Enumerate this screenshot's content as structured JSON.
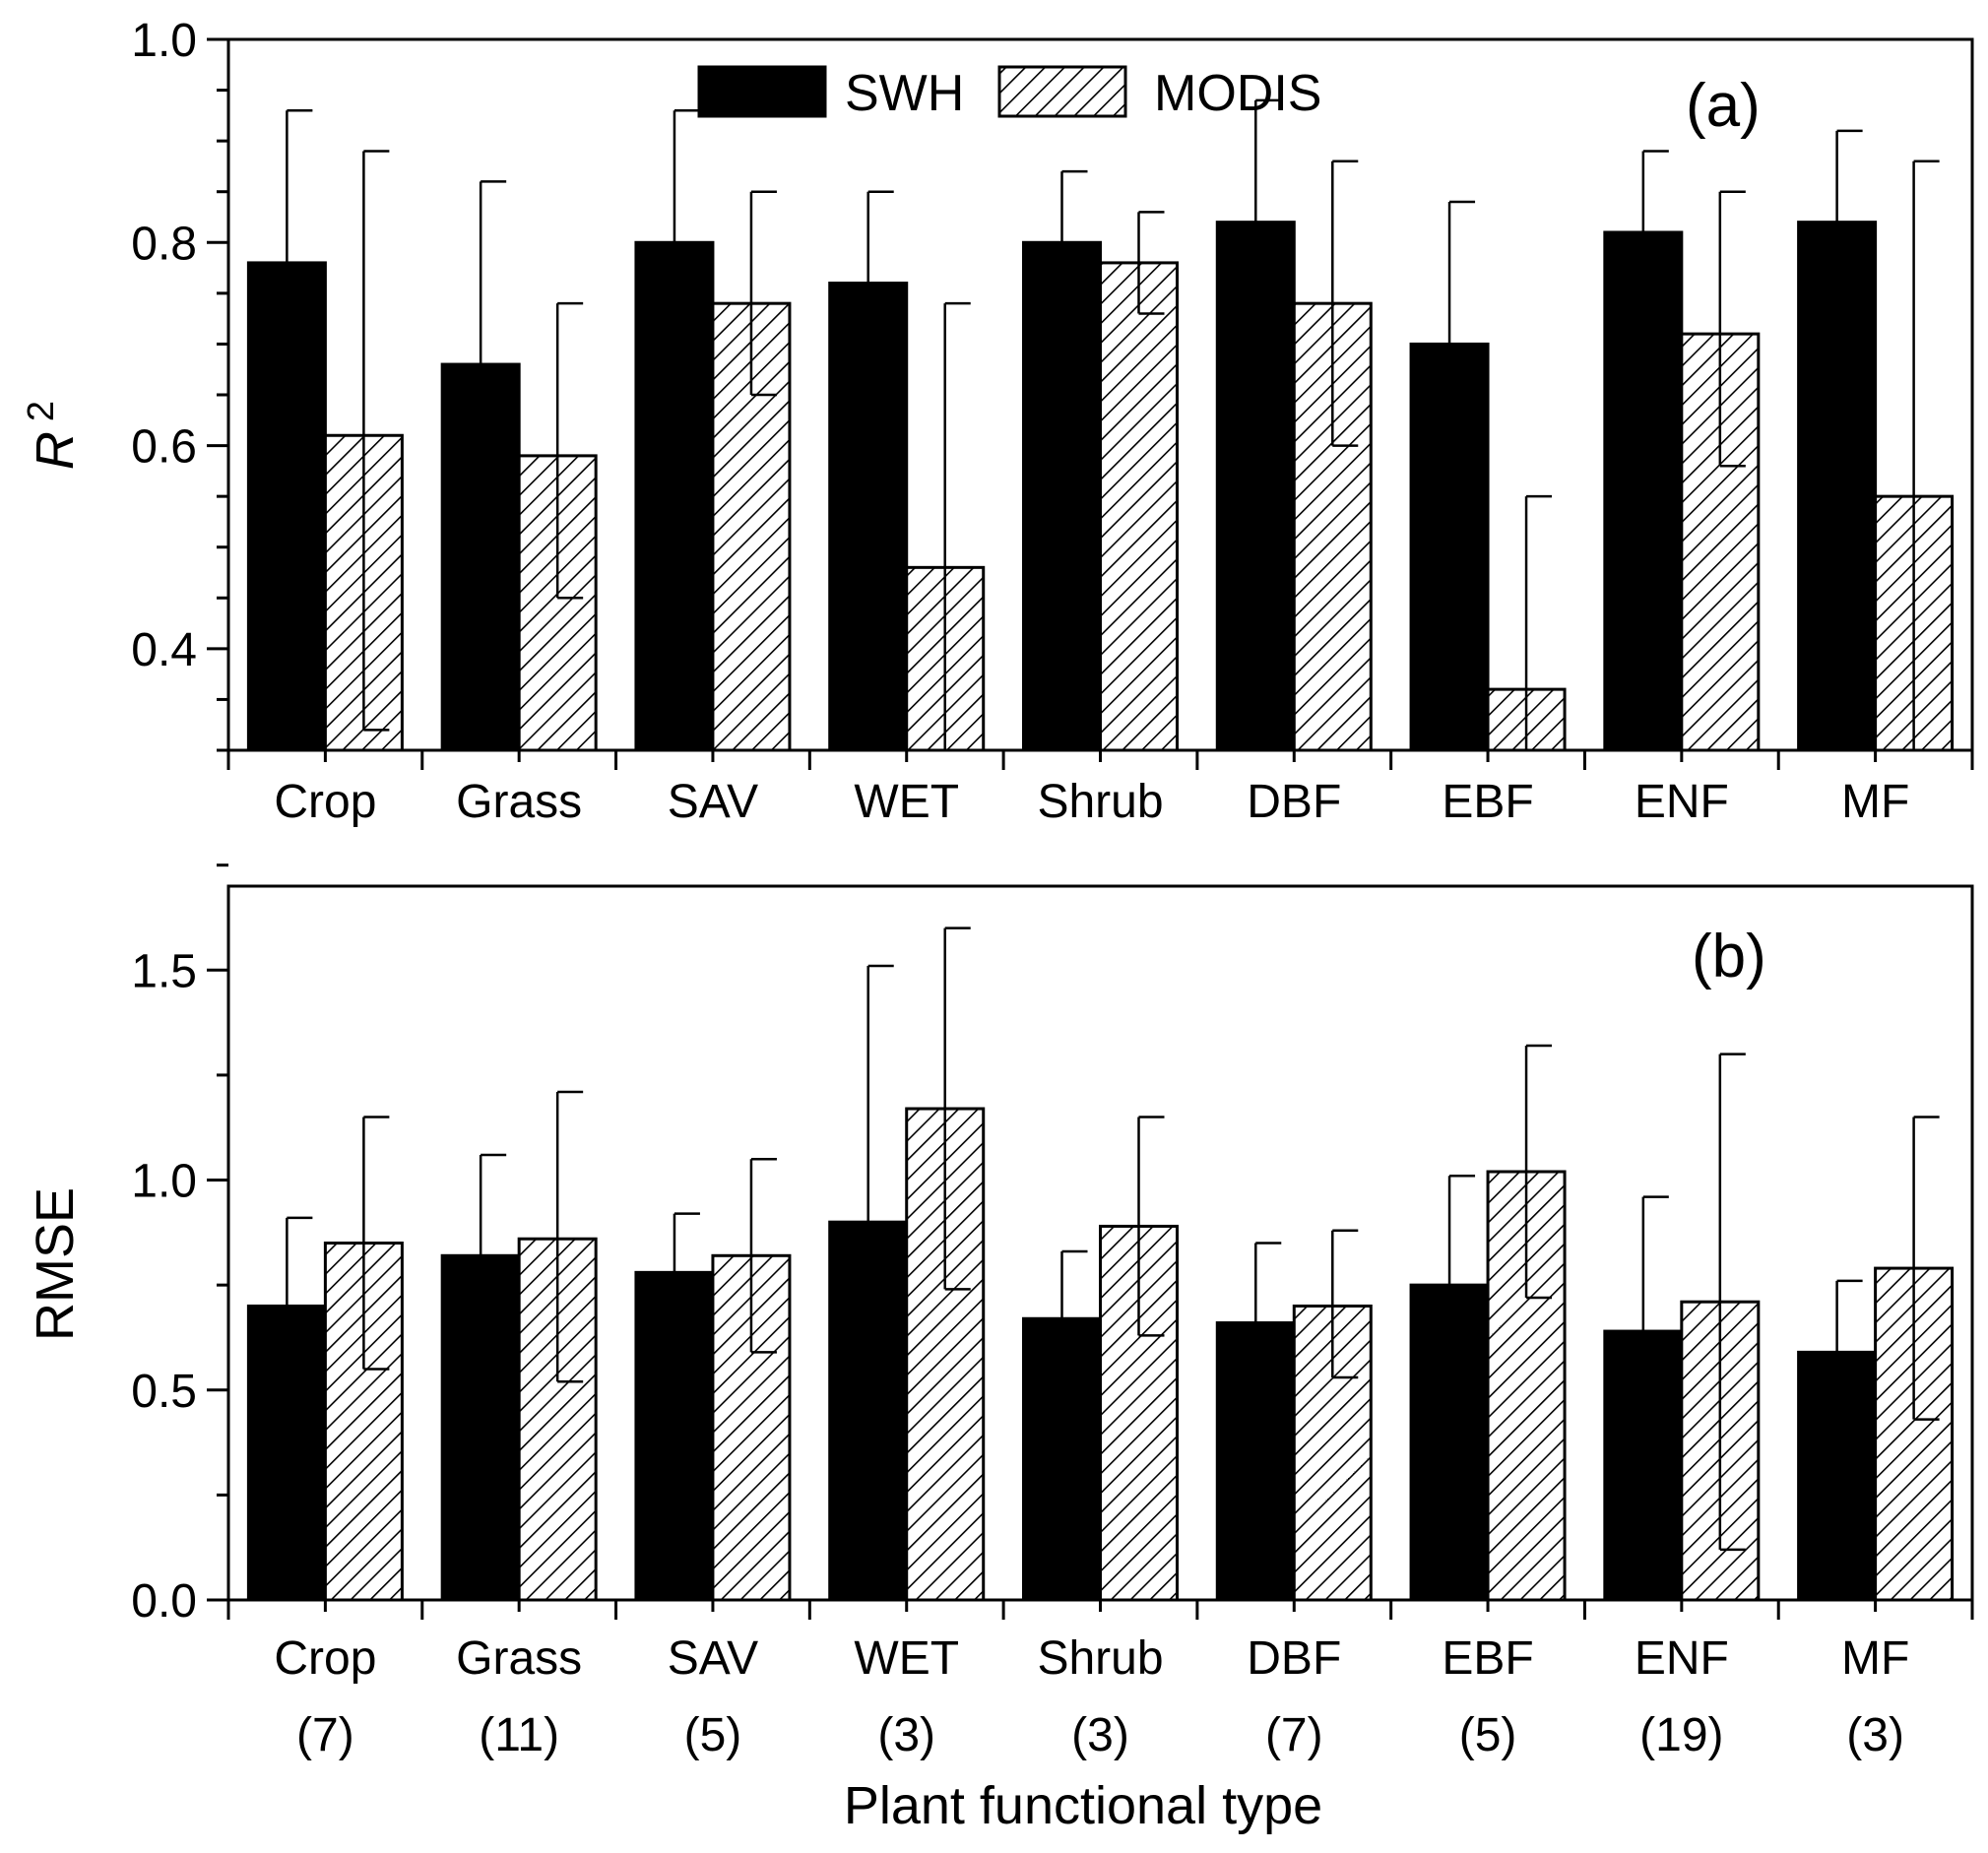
{
  "colors": {
    "swh": "#000000",
    "modis_hatch": "#000000",
    "background": "#ffffff"
  },
  "legend": {
    "swh": "SWH",
    "modis": "MODIS"
  },
  "xlabel": "Plant functional type",
  "chart_data": [
    {
      "type": "bar",
      "panel_label": "(a)",
      "ylabel_base": "R",
      "ylabel_sup": "2",
      "ylim": [
        0.3,
        1.0
      ],
      "yticks": [
        "0.4",
        "0.6",
        "0.8",
        "1.0"
      ],
      "categories": [
        "Crop",
        "Grass",
        "SAV",
        "WET",
        "Shrub",
        "DBF",
        "EBF",
        "ENF",
        "MF"
      ],
      "category_counts": [],
      "series": [
        {
          "name": "SWH",
          "values": [
            0.78,
            0.68,
            0.8,
            0.76,
            0.8,
            0.82,
            0.7,
            0.81,
            0.82
          ],
          "error_upper": [
            0.93,
            0.86,
            0.93,
            0.85,
            0.87,
            0.94,
            0.84,
            0.89,
            0.91
          ]
        },
        {
          "name": "MODIS",
          "values": [
            0.61,
            0.59,
            0.74,
            0.48,
            0.78,
            0.74,
            0.36,
            0.71,
            0.55
          ],
          "error_upper": [
            0.89,
            0.74,
            0.85,
            0.74,
            0.83,
            0.88,
            0.55,
            0.85,
            0.88
          ],
          "error_lower": [
            0.32,
            0.45,
            0.65,
            0.3,
            0.73,
            0.6,
            0.3,
            0.58,
            0.3
          ]
        }
      ],
      "grid": false,
      "legend_position": "top-center"
    },
    {
      "type": "bar",
      "panel_label": "(b)",
      "ylabel": "RMSE",
      "ylim": [
        0.0,
        1.7
      ],
      "yticks": [
        "0.0",
        "0.5",
        "1.0",
        "1.5"
      ],
      "categories": [
        "Crop",
        "Grass",
        "SAV",
        "WET",
        "Shrub",
        "DBF",
        "EBF",
        "ENF",
        "MF"
      ],
      "category_counts": [
        "(7)",
        "(11)",
        "(5)",
        "(3)",
        "(3)",
        "(7)",
        "(5)",
        "(19)",
        "(3)"
      ],
      "series": [
        {
          "name": "SWH",
          "values": [
            0.7,
            0.82,
            0.78,
            0.9,
            0.67,
            0.66,
            0.75,
            0.64,
            0.59
          ],
          "error_upper": [
            0.91,
            1.06,
            0.92,
            1.51,
            0.83,
            0.85,
            1.01,
            0.96,
            0.76
          ]
        },
        {
          "name": "MODIS",
          "values": [
            0.85,
            0.86,
            0.82,
            1.17,
            0.89,
            0.7,
            1.02,
            0.71,
            0.79
          ],
          "error_upper": [
            1.15,
            1.21,
            1.05,
            1.6,
            1.15,
            0.88,
            1.32,
            1.3,
            1.15
          ],
          "error_lower": [
            0.55,
            0.52,
            0.59,
            0.74,
            0.63,
            0.53,
            0.72,
            0.12,
            0.43
          ]
        }
      ],
      "grid": false,
      "legend_position": "none"
    }
  ]
}
